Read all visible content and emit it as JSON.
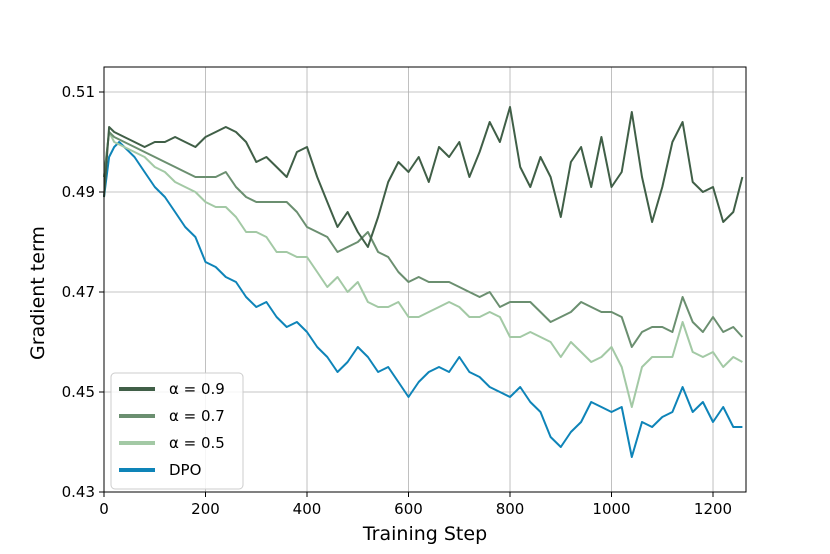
{
  "chart_data": {
    "type": "line",
    "title": "",
    "xlabel": "Training Step",
    "ylabel": "Gradient term",
    "xlim": [
      0,
      1265
    ],
    "ylim": [
      0.43,
      0.515
    ],
    "xticks": [
      0,
      200,
      400,
      600,
      800,
      1000,
      1200
    ],
    "yticks": [
      0.43,
      0.45,
      0.47,
      0.49,
      0.51
    ],
    "xtick_labels": [
      "0",
      "200",
      "400",
      "600",
      "800",
      "1000",
      "1200"
    ],
    "ytick_labels": [
      "0.43",
      "0.45",
      "0.47",
      "0.49",
      "0.51"
    ],
    "grid": true,
    "legend_position": "lower-left",
    "series": [
      {
        "name": "α = 0.9",
        "color": "#405f47",
        "x": [
          0,
          10,
          20,
          40,
          60,
          80,
          100,
          120,
          140,
          160,
          180,
          200,
          220,
          240,
          260,
          280,
          300,
          320,
          340,
          360,
          380,
          400,
          420,
          440,
          460,
          480,
          500,
          520,
          540,
          560,
          580,
          600,
          620,
          640,
          660,
          680,
          700,
          720,
          740,
          760,
          780,
          800,
          820,
          840,
          860,
          880,
          900,
          920,
          940,
          960,
          980,
          1000,
          1020,
          1040,
          1060,
          1080,
          1100,
          1120,
          1140,
          1160,
          1180,
          1200,
          1220,
          1240,
          1258
        ],
        "y": [
          0.489,
          0.503,
          0.502,
          0.501,
          0.5,
          0.499,
          0.5,
          0.5,
          0.501,
          0.5,
          0.499,
          0.501,
          0.502,
          0.503,
          0.502,
          0.5,
          0.496,
          0.497,
          0.495,
          0.493,
          0.498,
          0.499,
          0.493,
          0.488,
          0.483,
          0.486,
          0.482,
          0.479,
          0.485,
          0.492,
          0.496,
          0.494,
          0.497,
          0.492,
          0.499,
          0.497,
          0.5,
          0.493,
          0.498,
          0.504,
          0.5,
          0.507,
          0.495,
          0.491,
          0.497,
          0.493,
          0.485,
          0.496,
          0.499,
          0.491,
          0.501,
          0.491,
          0.494,
          0.506,
          0.493,
          0.484,
          0.491,
          0.5,
          0.504,
          0.492,
          0.49,
          0.491,
          0.484,
          0.486,
          0.493
        ]
      },
      {
        "name": "α = 0.7",
        "color": "#6b8f70",
        "x": [
          0,
          10,
          20,
          40,
          60,
          80,
          100,
          120,
          140,
          160,
          180,
          200,
          220,
          240,
          260,
          280,
          300,
          320,
          340,
          360,
          380,
          400,
          420,
          440,
          460,
          480,
          500,
          520,
          540,
          560,
          580,
          600,
          620,
          640,
          660,
          680,
          700,
          720,
          740,
          760,
          780,
          800,
          820,
          840,
          860,
          880,
          900,
          920,
          940,
          960,
          980,
          1000,
          1020,
          1040,
          1060,
          1080,
          1100,
          1120,
          1140,
          1160,
          1180,
          1200,
          1220,
          1240,
          1258
        ],
        "y": [
          0.493,
          0.502,
          0.501,
          0.5,
          0.499,
          0.498,
          0.497,
          0.496,
          0.495,
          0.494,
          0.493,
          0.493,
          0.493,
          0.494,
          0.491,
          0.489,
          0.488,
          0.488,
          0.488,
          0.488,
          0.486,
          0.483,
          0.482,
          0.481,
          0.478,
          0.479,
          0.48,
          0.482,
          0.478,
          0.477,
          0.474,
          0.472,
          0.473,
          0.472,
          0.472,
          0.472,
          0.471,
          0.47,
          0.469,
          0.47,
          0.467,
          0.468,
          0.468,
          0.468,
          0.466,
          0.464,
          0.465,
          0.466,
          0.468,
          0.467,
          0.466,
          0.466,
          0.465,
          0.459,
          0.462,
          0.463,
          0.463,
          0.462,
          0.469,
          0.464,
          0.462,
          0.465,
          0.462,
          0.463,
          0.461
        ]
      },
      {
        "name": "α = 0.5",
        "color": "#a3c9a5",
        "x": [
          0,
          10,
          20,
          40,
          60,
          80,
          100,
          120,
          140,
          160,
          180,
          200,
          220,
          240,
          260,
          280,
          300,
          320,
          340,
          360,
          380,
          400,
          420,
          440,
          460,
          480,
          500,
          520,
          540,
          560,
          580,
          600,
          620,
          640,
          660,
          680,
          700,
          720,
          740,
          760,
          780,
          800,
          820,
          840,
          860,
          880,
          900,
          920,
          940,
          960,
          980,
          1000,
          1020,
          1040,
          1060,
          1080,
          1100,
          1120,
          1140,
          1160,
          1180,
          1200,
          1220,
          1240,
          1258
        ],
        "y": [
          0.493,
          0.502,
          0.5,
          0.499,
          0.498,
          0.497,
          0.495,
          0.494,
          0.492,
          0.491,
          0.49,
          0.488,
          0.487,
          0.487,
          0.485,
          0.482,
          0.482,
          0.481,
          0.478,
          0.478,
          0.477,
          0.477,
          0.474,
          0.471,
          0.473,
          0.47,
          0.472,
          0.468,
          0.467,
          0.467,
          0.468,
          0.465,
          0.465,
          0.466,
          0.467,
          0.468,
          0.467,
          0.465,
          0.465,
          0.466,
          0.465,
          0.461,
          0.461,
          0.462,
          0.461,
          0.46,
          0.457,
          0.46,
          0.458,
          0.456,
          0.457,
          0.459,
          0.455,
          0.447,
          0.455,
          0.457,
          0.457,
          0.457,
          0.464,
          0.458,
          0.457,
          0.458,
          0.455,
          0.457,
          0.456
        ]
      },
      {
        "name": "DPO",
        "color": "#0e84b8",
        "x": [
          0,
          10,
          20,
          30,
          40,
          60,
          80,
          100,
          120,
          140,
          160,
          180,
          200,
          220,
          240,
          260,
          280,
          300,
          320,
          340,
          360,
          380,
          400,
          420,
          440,
          460,
          480,
          500,
          520,
          540,
          560,
          580,
          600,
          620,
          640,
          660,
          680,
          700,
          720,
          740,
          760,
          780,
          800,
          820,
          840,
          860,
          880,
          900,
          920,
          940,
          960,
          980,
          1000,
          1020,
          1040,
          1060,
          1080,
          1100,
          1120,
          1140,
          1160,
          1180,
          1200,
          1220,
          1240,
          1258
        ],
        "y": [
          0.489,
          0.497,
          0.499,
          0.5,
          0.499,
          0.497,
          0.494,
          0.491,
          0.489,
          0.486,
          0.483,
          0.481,
          0.476,
          0.475,
          0.473,
          0.472,
          0.469,
          0.467,
          0.468,
          0.465,
          0.463,
          0.464,
          0.462,
          0.459,
          0.457,
          0.454,
          0.456,
          0.459,
          0.457,
          0.454,
          0.455,
          0.452,
          0.449,
          0.452,
          0.454,
          0.455,
          0.454,
          0.457,
          0.454,
          0.453,
          0.451,
          0.45,
          0.449,
          0.451,
          0.448,
          0.446,
          0.441,
          0.439,
          0.442,
          0.444,
          0.448,
          0.447,
          0.446,
          0.447,
          0.437,
          0.444,
          0.443,
          0.445,
          0.446,
          0.451,
          0.446,
          0.448,
          0.444,
          0.447,
          0.443,
          0.443
        ]
      }
    ]
  }
}
